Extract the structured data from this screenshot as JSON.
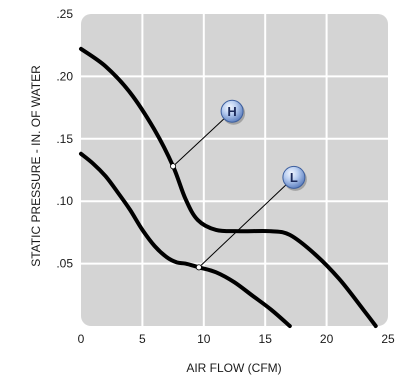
{
  "chart_data": {
    "type": "line",
    "title": "",
    "xlabel": "AIR FLOW (CFM)",
    "ylabel": "STATIC PRESSURE - IN. OF WATER",
    "xlim": [
      0,
      25
    ],
    "ylim": [
      0,
      0.25
    ],
    "x_ticks": [
      "0",
      "5",
      "10",
      "15",
      "20",
      "25"
    ],
    "y_ticks": [
      ".05",
      ".10",
      ".15",
      ".20",
      ".25"
    ],
    "grid": true,
    "series": [
      {
        "name": "H",
        "label_point": [
          7.5,
          0.128
        ],
        "x": [
          0,
          2,
          4,
          6,
          7.5,
          8.5,
          9.5,
          11,
          13,
          15.5,
          17,
          19,
          21,
          23,
          24
        ],
        "y": [
          0.222,
          0.208,
          0.187,
          0.157,
          0.128,
          0.102,
          0.085,
          0.077,
          0.076,
          0.076,
          0.073,
          0.058,
          0.038,
          0.013,
          0
        ]
      },
      {
        "name": "L",
        "label_point": [
          9.6,
          0.047
        ],
        "x": [
          0,
          1,
          2,
          3,
          4,
          5,
          6,
          7,
          7.8,
          8.5,
          9.6,
          11,
          12.5,
          14,
          15.5,
          17
        ],
        "y": [
          0.138,
          0.13,
          0.12,
          0.107,
          0.093,
          0.077,
          0.064,
          0.055,
          0.051,
          0.05,
          0.047,
          0.043,
          0.035,
          0.024,
          0.013,
          0
        ]
      }
    ]
  }
}
